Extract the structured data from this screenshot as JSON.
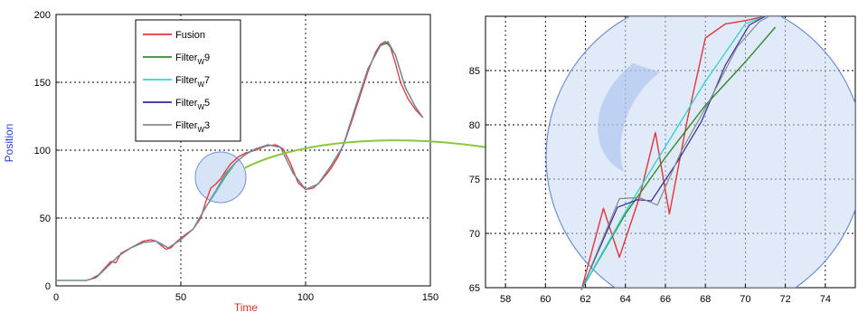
{
  "chart_data": [
    {
      "type": "line",
      "xlabel": "Time",
      "ylabel": "Position",
      "xlim": [
        0,
        150
      ],
      "ylim": [
        0,
        200
      ],
      "x_ticks": [
        0,
        50,
        100,
        150
      ],
      "y_ticks": [
        0,
        50,
        100,
        150,
        200
      ],
      "grid": "dotted",
      "legend_position": "top-left",
      "colors": {
        "axis_label_x": "#e0302a",
        "axis_label_y": "#2a3fd6",
        "zoom_circle_fill": "#c9d9f3",
        "zoom_circle_stroke": "#6f8fd6",
        "arrow": "#8cc63f"
      },
      "series": [
        {
          "name": "Fusion",
          "sub": "",
          "color": "#e3343b",
          "width": 1.3,
          "dash": "",
          "x": [
            0,
            12,
            14,
            17,
            20,
            22,
            24,
            26,
            28,
            30,
            32,
            35,
            38,
            40,
            42,
            44,
            46,
            48,
            50,
            52,
            55,
            58,
            60,
            62,
            64,
            66,
            68,
            70,
            73,
            76,
            80,
            84,
            88,
            91,
            94,
            97,
            100,
            103,
            106,
            110,
            113,
            116,
            119,
            122,
            125,
            128,
            130,
            132,
            134,
            136,
            138,
            141,
            144,
            147
          ],
          "y": [
            4,
            4,
            5,
            8,
            14,
            18,
            17,
            24,
            26,
            28,
            30,
            33,
            34,
            33,
            30,
            27,
            28,
            32,
            35,
            38,
            42,
            50,
            62,
            72,
            75,
            79,
            85,
            90,
            95,
            98,
            100,
            103,
            104,
            101,
            90,
            76,
            71,
            72,
            77,
            86,
            95,
            108,
            124,
            141,
            158,
            172,
            178,
            180,
            176,
            164,
            150,
            138,
            130,
            124
          ]
        },
        {
          "name": "Filter",
          "sub": "W",
          "suffix": "9",
          "color": "#2e8b2e",
          "width": 1.3,
          "dash": "",
          "x": [
            0,
            12,
            16,
            20,
            25,
            30,
            35,
            40,
            45,
            50,
            55,
            60,
            64,
            68,
            72,
            76,
            80,
            85,
            90,
            95,
            100,
            105,
            110,
            115,
            120,
            125,
            130,
            133,
            136,
            140,
            144,
            147
          ],
          "y": [
            4,
            4,
            6,
            13,
            22,
            28,
            32,
            33,
            28,
            34,
            42,
            58,
            69,
            81,
            91,
            97,
            101,
            104,
            102,
            83,
            71,
            75,
            88,
            103,
            132,
            160,
            177,
            179,
            170,
            146,
            132,
            124
          ]
        },
        {
          "name": "Filter",
          "sub": "W",
          "suffix": "7",
          "color": "#35d4d4",
          "width": 1.3,
          "dash": "",
          "x": [
            0,
            12,
            16,
            20,
            25,
            30,
            35,
            40,
            45,
            50,
            55,
            60,
            64,
            68,
            72,
            76,
            80,
            85,
            90,
            95,
            100,
            105,
            110,
            115,
            120,
            125,
            130,
            133,
            136,
            140,
            144,
            147
          ],
          "y": [
            4,
            4,
            6,
            13,
            22,
            28,
            32,
            33,
            28,
            34,
            42,
            58,
            69,
            82,
            91,
            97,
            101,
            104,
            102,
            83,
            71,
            75,
            88,
            103,
            132,
            160,
            177,
            180,
            170,
            146,
            132,
            124
          ]
        },
        {
          "name": "Filter",
          "sub": "W",
          "suffix": "5",
          "color": "#2b2b9c",
          "width": 1.1,
          "dash": "",
          "x": [
            0,
            12,
            16,
            20,
            25,
            30,
            35,
            40,
            45,
            50,
            55,
            60,
            64,
            68,
            72,
            76,
            80,
            85,
            90,
            95,
            100,
            105,
            110,
            115,
            120,
            125,
            130,
            133,
            136,
            140,
            144,
            147
          ],
          "y": [
            4,
            4,
            6,
            13,
            22,
            28,
            32,
            33,
            28,
            34,
            42,
            58,
            70,
            83,
            91,
            97,
            101,
            104,
            102,
            83,
            71,
            75,
            88,
            103,
            132,
            160,
            177,
            180,
            170,
            146,
            132,
            124
          ]
        },
        {
          "name": "Filter",
          "sub": "W",
          "suffix": "3",
          "color": "#8a8a8a",
          "width": 1.1,
          "dash": "",
          "x": [
            0,
            12,
            16,
            20,
            25,
            30,
            35,
            40,
            45,
            50,
            55,
            60,
            64,
            68,
            72,
            76,
            80,
            85,
            90,
            95,
            100,
            105,
            110,
            115,
            120,
            125,
            130,
            133,
            136,
            140,
            144,
            147
          ],
          "y": [
            4,
            4,
            6,
            13,
            22,
            28,
            32,
            33,
            28,
            34,
            42,
            58,
            70,
            83,
            91,
            97,
            101,
            104,
            102,
            83,
            71,
            75,
            88,
            103,
            132,
            160,
            177,
            180,
            170,
            146,
            132,
            124
          ]
        }
      ]
    },
    {
      "type": "line",
      "xlabel": "",
      "ylabel": "",
      "xlim": [
        57,
        75.5
      ],
      "ylim": [
        65,
        90
      ],
      "x_ticks": [
        58,
        60,
        62,
        64,
        66,
        68,
        70,
        72,
        74
      ],
      "y_ticks": [
        65,
        70,
        75,
        80,
        85
      ],
      "grid": "dotted",
      "series": [
        {
          "name": "Fusion",
          "color": "#e3343b",
          "width": 1.4,
          "x": [
            61.8,
            62.9,
            63.7,
            64.7,
            65.5,
            66.2,
            67.1,
            68.0,
            69.0,
            70.0,
            71.0
          ],
          "y": [
            64.8,
            72.3,
            67.8,
            73.3,
            79.3,
            71.8,
            80.5,
            88.0,
            89.3,
            89.6,
            90.0
          ]
        },
        {
          "name": "Filter W9",
          "color": "#2e8b2e",
          "width": 1.4,
          "x": [
            61.8,
            64.0,
            66.0,
            68.0,
            70.0,
            71.5
          ],
          "y": [
            64.8,
            71.8,
            77.0,
            81.8,
            85.8,
            89.0
          ]
        },
        {
          "name": "Filter W7",
          "color": "#35d4d4",
          "width": 1.4,
          "x": [
            61.8,
            64.0,
            66.0,
            68.0,
            70.0,
            71.0
          ],
          "y": [
            64.8,
            72.0,
            78.0,
            84.0,
            89.3,
            90.0
          ]
        },
        {
          "name": "Filter W5",
          "color": "#2b2b9c",
          "width": 1.2,
          "x": [
            61.8,
            63.6,
            64.6,
            65.3,
            66.6,
            67.8,
            69.0,
            70.2,
            71.0
          ],
          "y": [
            64.8,
            72.4,
            73.1,
            73.0,
            76.6,
            80.3,
            85.5,
            89.2,
            90.0
          ]
        },
        {
          "name": "Filter W3",
          "color": "#8a8a8a",
          "width": 1.2,
          "x": [
            61.8,
            63.7,
            64.7,
            65.6,
            66.8,
            68.2,
            69.6,
            70.7,
            71.2
          ],
          "y": [
            64.8,
            73.2,
            73.3,
            72.6,
            77.6,
            82.2,
            87.2,
            89.5,
            90.0
          ]
        }
      ]
    }
  ]
}
